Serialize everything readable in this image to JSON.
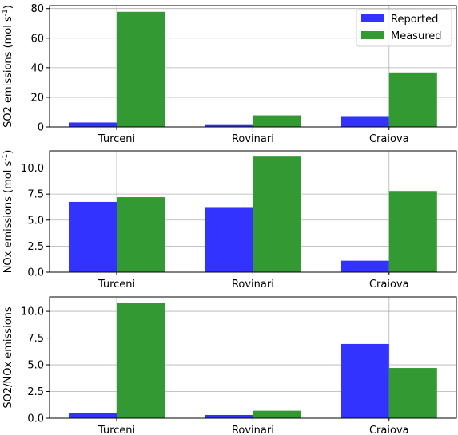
{
  "chart_data": [
    {
      "type": "bar",
      "categories": [
        "Turceni",
        "Rovinari",
        "Craiova"
      ],
      "series": [
        {
          "name": "Reported",
          "values": [
            3.0,
            1.8,
            7.3
          ],
          "color": "#3333ff"
        },
        {
          "name": "Measured",
          "values": [
            77.8,
            7.8,
            36.8
          ],
          "color": "#339933"
        }
      ],
      "ylabel_main": "SO2 emissions (mol s",
      "ylabel_sup": "-1",
      "ylabel_end": ")",
      "ylim": [
        0,
        82
      ],
      "yticks": [
        0,
        20,
        40,
        60,
        80
      ],
      "ytick_labels": [
        "0",
        "20",
        "40",
        "60",
        "80"
      ],
      "grid": true,
      "legend": "top-right"
    },
    {
      "type": "bar",
      "categories": [
        "Turceni",
        "Rovinari",
        "Craiova"
      ],
      "series": [
        {
          "name": "Reported",
          "values": [
            6.75,
            6.25,
            1.1
          ],
          "color": "#3333ff"
        },
        {
          "name": "Measured",
          "values": [
            7.2,
            11.1,
            7.8
          ],
          "color": "#339933"
        }
      ],
      "ylabel_main": "NOx emissions (mol s",
      "ylabel_sup": "-1",
      "ylabel_end": ")",
      "ylim": [
        0,
        11.65
      ],
      "yticks": [
        0,
        2.5,
        5,
        7.5,
        10
      ],
      "ytick_labels": [
        "0.0",
        "2.5",
        "5.0",
        "7.5",
        "10.0"
      ],
      "grid": true
    },
    {
      "type": "bar",
      "categories": [
        "Turceni",
        "Rovinari",
        "Craiova"
      ],
      "series": [
        {
          "name": "Reported",
          "values": [
            0.5,
            0.3,
            6.95
          ],
          "color": "#3333ff"
        },
        {
          "name": "Measured",
          "values": [
            10.8,
            0.7,
            4.7
          ],
          "color": "#339933"
        }
      ],
      "ylabel_main": "SO2/NOx emissions",
      "ylabel_sup": "",
      "ylabel_end": "",
      "ylim": [
        0,
        11.35
      ],
      "yticks": [
        0,
        2.5,
        5,
        7.5,
        10
      ],
      "ytick_labels": [
        "0.0",
        "2.5",
        "5.0",
        "7.5",
        "10.0"
      ],
      "grid": true
    }
  ],
  "legend": {
    "items": [
      "Reported",
      "Measured"
    ]
  }
}
